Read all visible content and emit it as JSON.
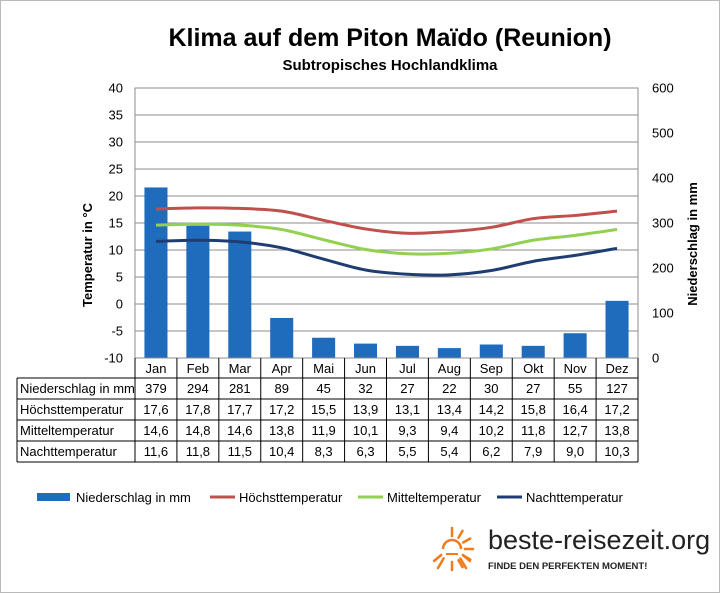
{
  "chart_data": {
    "type": "bar",
    "title": "Klima auf dem Piton Maïdo (Reunion)",
    "subtitle": "Subtropisches Hochlandklima",
    "categories": [
      "Jan",
      "Feb",
      "Mar",
      "Apr",
      "Mai",
      "Jun",
      "Jul",
      "Aug",
      "Sep",
      "Okt",
      "Nov",
      "Dez"
    ],
    "y_left": {
      "label": "Temperatur in °C",
      "ylim": [
        -10,
        40
      ],
      "ticks": [
        "40",
        "35",
        "30",
        "25",
        "20",
        "15",
        "10",
        "5",
        "0",
        "-5",
        "-10"
      ],
      "tick_values": [
        40,
        35,
        30,
        25,
        20,
        15,
        10,
        5,
        0,
        -5,
        -10
      ]
    },
    "y_right": {
      "label": "Niederschlag in mm",
      "ylim": [
        0,
        600
      ],
      "ticks": [
        "600",
        "500",
        "400",
        "300",
        "200",
        "100",
        "0"
      ],
      "tick_values": [
        600,
        500,
        400,
        300,
        200,
        100,
        0
      ]
    },
    "series": [
      {
        "name": "Niederschlag in mm",
        "kind": "bar",
        "axis": "right",
        "color": "#1f6cbd",
        "values": [
          379,
          294,
          281,
          89,
          45,
          32,
          27,
          22,
          30,
          27,
          55,
          127
        ],
        "labels": [
          "379",
          "294",
          "281",
          "89",
          "45",
          "32",
          "27",
          "22",
          "30",
          "27",
          "55",
          "127"
        ]
      },
      {
        "name": "Höchsttemperatur",
        "kind": "line",
        "axis": "left",
        "color": "#c0504d",
        "values": [
          17.6,
          17.8,
          17.7,
          17.2,
          15.5,
          13.9,
          13.1,
          13.4,
          14.2,
          15.8,
          16.4,
          17.2
        ],
        "labels": [
          "17,6",
          "17,8",
          "17,7",
          "17,2",
          "15,5",
          "13,9",
          "13,1",
          "13,4",
          "14,2",
          "15,8",
          "16,4",
          "17,2"
        ]
      },
      {
        "name": "Mitteltemperatur",
        "kind": "line",
        "axis": "left",
        "color": "#92d050",
        "values": [
          14.6,
          14.8,
          14.6,
          13.8,
          11.9,
          10.1,
          9.3,
          9.4,
          10.2,
          11.8,
          12.7,
          13.8
        ],
        "labels": [
          "14,6",
          "14,8",
          "14,6",
          "13,8",
          "11,9",
          "10,1",
          "9,3",
          "9,4",
          "10,2",
          "11,8",
          "12,7",
          "13,8"
        ]
      },
      {
        "name": "Nachttemperatur",
        "kind": "line",
        "axis": "left",
        "color": "#1f3d73",
        "values": [
          11.6,
          11.8,
          11.5,
          10.4,
          8.3,
          6.3,
          5.5,
          5.4,
          6.2,
          7.9,
          9.0,
          10.3
        ],
        "labels": [
          "11,6",
          "11,8",
          "11,5",
          "10,4",
          "8,3",
          "6,3",
          "5,5",
          "5,4",
          "6,2",
          "7,9",
          "9,0",
          "10,3"
        ]
      }
    ],
    "table": {
      "rows": [
        "Niederschlag in mm",
        "Höchsttemperatur",
        "Mitteltemperatur",
        "Nachttemperatur"
      ]
    },
    "grid": "horizontal",
    "legend_position": "bottom"
  },
  "branding": {
    "site": "beste-reisezeit.org",
    "slogan": "FINDE DEN PERFEKTEN MOMENT!",
    "icon": "sun-icon",
    "icon_color": "#f07c1b"
  }
}
